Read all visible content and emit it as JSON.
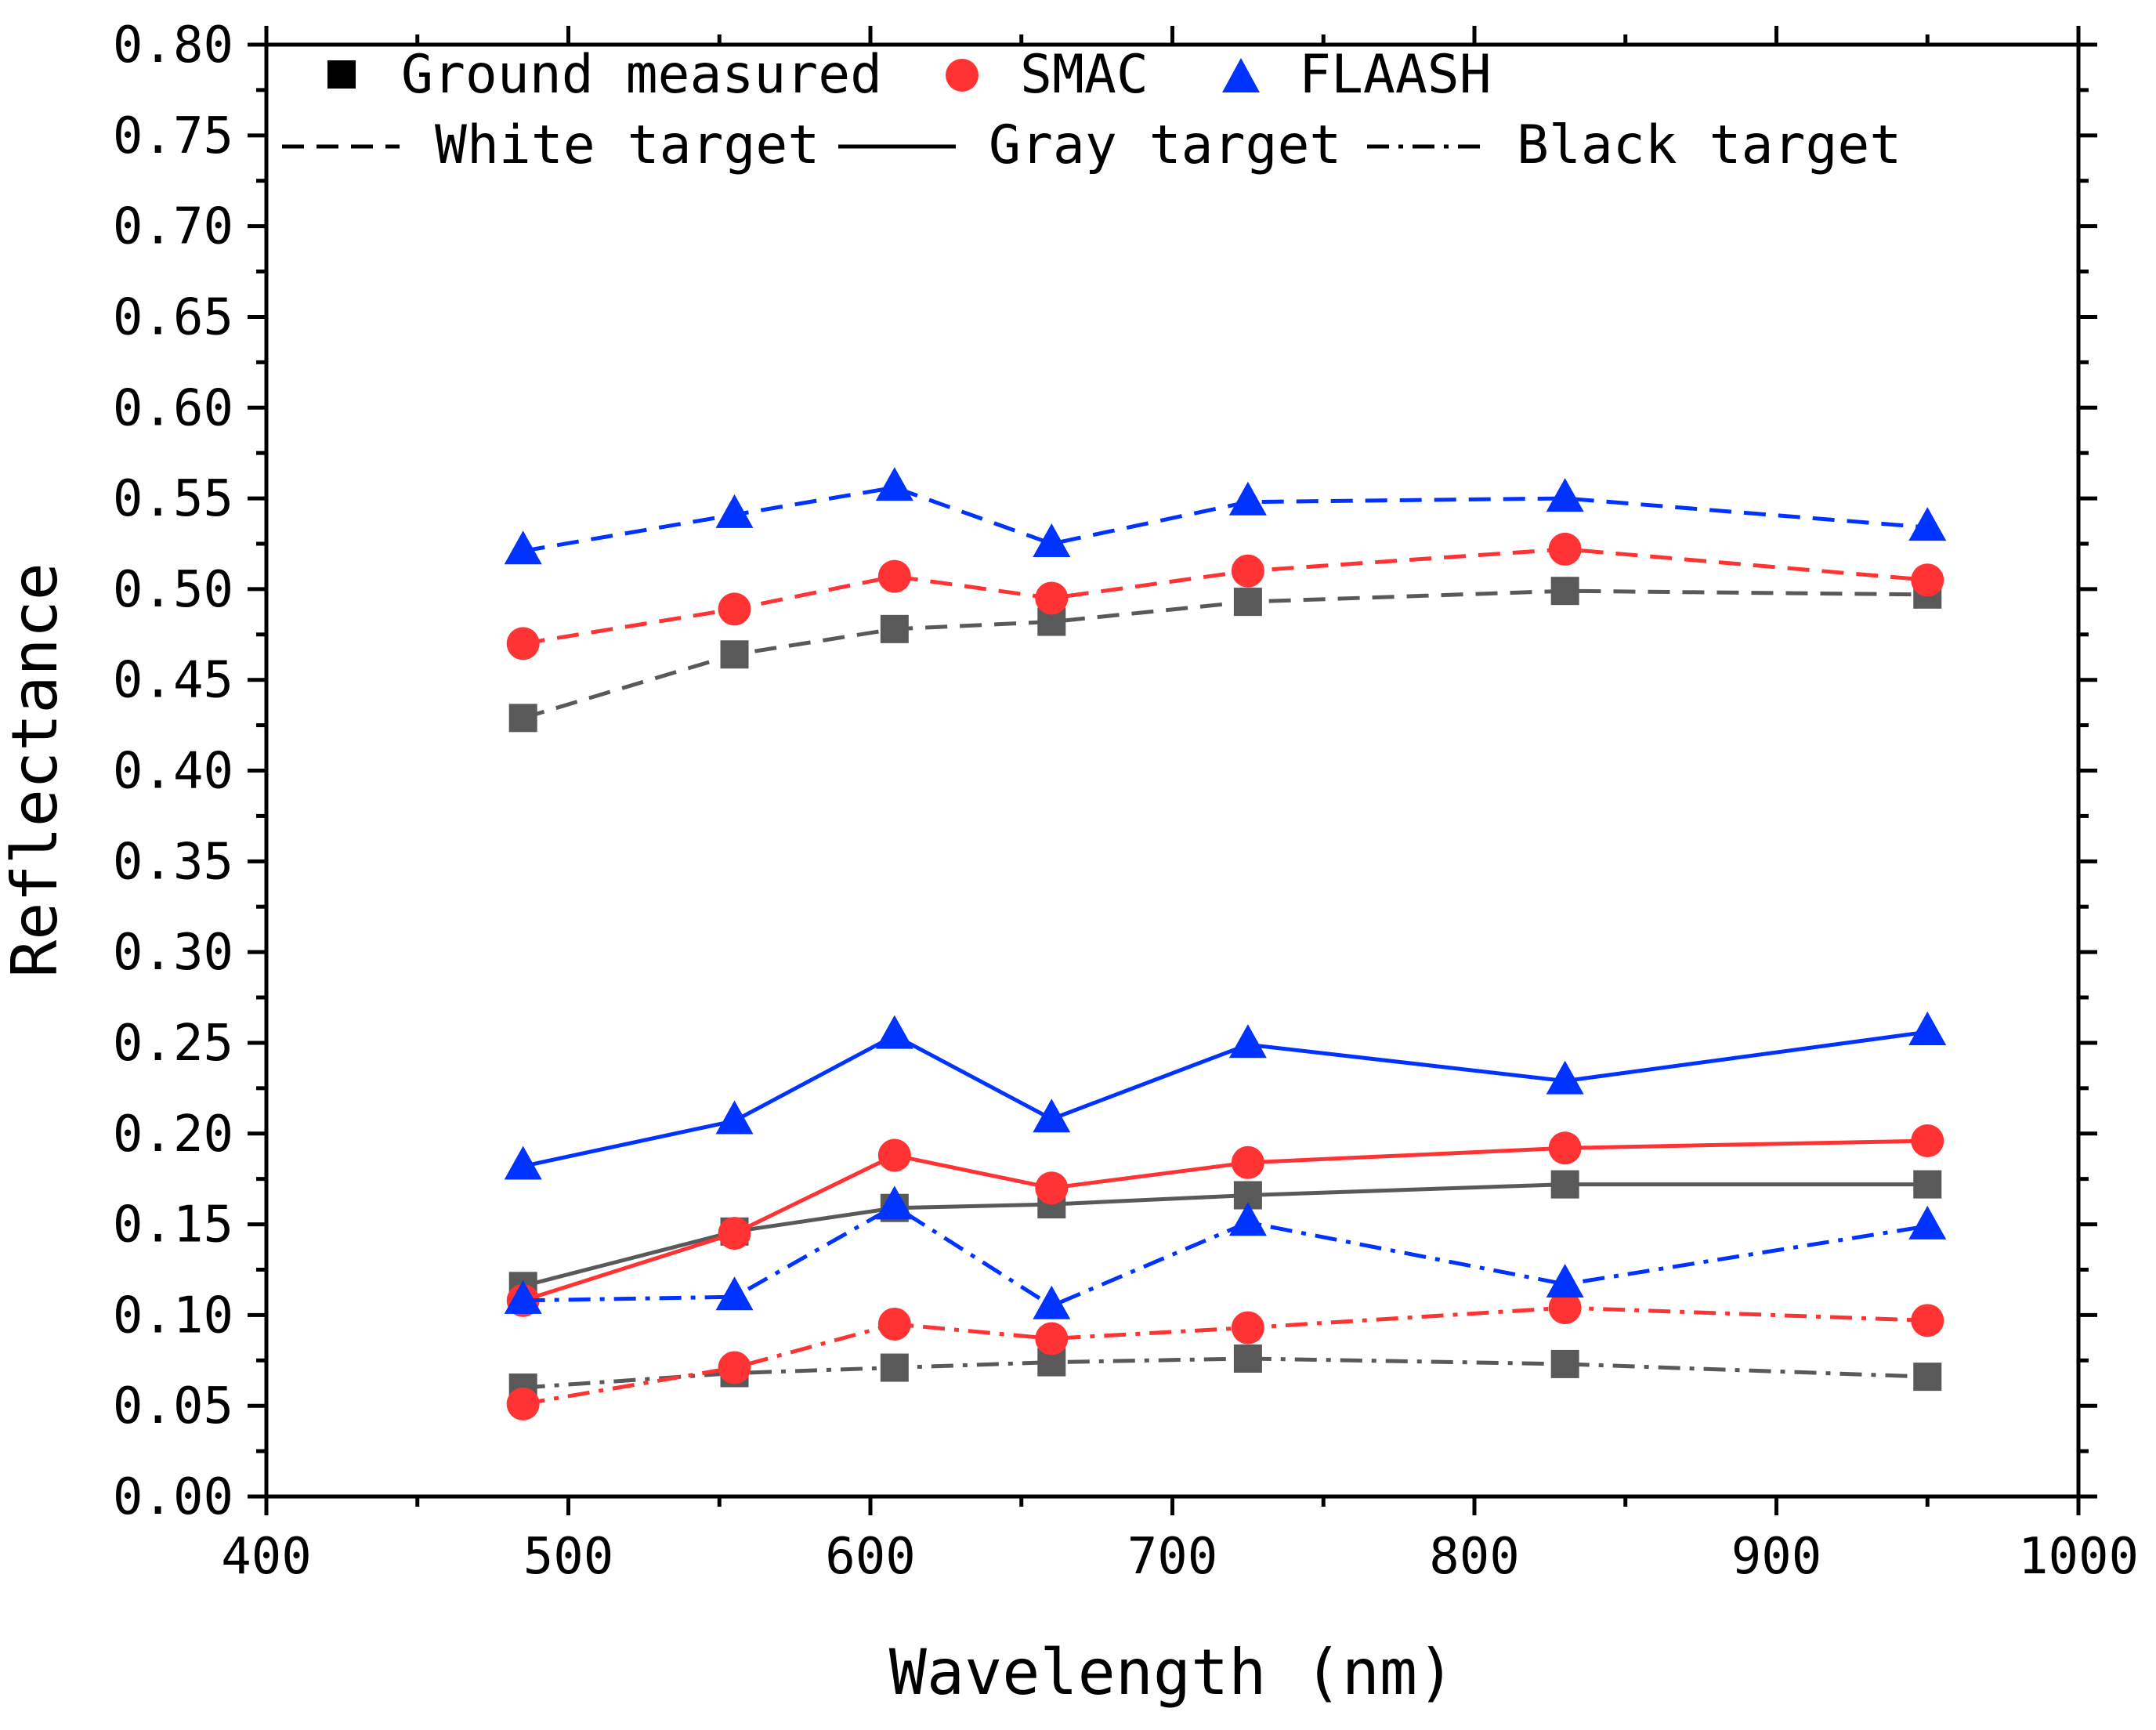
{
  "chart_data": {
    "type": "line",
    "title": "",
    "xlabel": "Wavelength (nm)",
    "ylabel": "Reflectance",
    "xlim": [
      400,
      1000
    ],
    "ylim": [
      0.0,
      0.8
    ],
    "x_ticks": [
      "400",
      "500",
      "600",
      "700",
      "800",
      "900",
      "1000"
    ],
    "y_ticks": [
      "0.00",
      "0.05",
      "0.10",
      "0.15",
      "0.20",
      "0.25",
      "0.30",
      "0.35",
      "0.40",
      "0.45",
      "0.50",
      "0.55",
      "0.60",
      "0.65",
      "0.70",
      "0.75",
      "0.80"
    ],
    "grid": false,
    "legend_position": "top-left",
    "x": [
      485,
      555,
      608,
      660,
      725,
      830,
      950
    ],
    "legend": {
      "sources": [
        {
          "label": "Ground measured",
          "marker": "square",
          "color": "#000000"
        },
        {
          "label": "SMAC",
          "marker": "circle",
          "color": "#ff3333"
        },
        {
          "label": "FLAASH",
          "marker": "triangle",
          "color": "#0033ff"
        }
      ],
      "targets": [
        {
          "label": "White target",
          "dash": "dashed"
        },
        {
          "label": "Gray target",
          "dash": "solid"
        },
        {
          "label": "Black target",
          "dash": "dashdot"
        }
      ]
    },
    "series": [
      {
        "name": "Ground measured - White target",
        "source": "Ground measured",
        "target": "White target",
        "color": "#595959",
        "marker": "square",
        "dash": "dashed",
        "values": [
          0.429,
          0.464,
          0.478,
          0.482,
          0.493,
          0.499,
          0.497
        ]
      },
      {
        "name": "SMAC - White target",
        "source": "SMAC",
        "target": "White target",
        "color": "#ff3333",
        "marker": "circle",
        "dash": "dashed",
        "values": [
          0.47,
          0.489,
          0.507,
          0.495,
          0.51,
          0.522,
          0.505
        ]
      },
      {
        "name": "FLAASH - White target",
        "source": "FLAASH",
        "target": "White target",
        "color": "#0033ff",
        "marker": "triangle",
        "dash": "dashed",
        "values": [
          0.521,
          0.541,
          0.556,
          0.525,
          0.548,
          0.55,
          0.534
        ]
      },
      {
        "name": "Ground measured - Gray target",
        "source": "Ground measured",
        "target": "Gray target",
        "color": "#595959",
        "marker": "square",
        "dash": "solid",
        "values": [
          0.116,
          0.146,
          0.159,
          0.161,
          0.166,
          0.172,
          0.172
        ]
      },
      {
        "name": "SMAC - Gray target",
        "source": "SMAC",
        "target": "Gray target",
        "color": "#ff3333",
        "marker": "circle",
        "dash": "solid",
        "values": [
          0.108,
          0.145,
          0.188,
          0.17,
          0.184,
          0.192,
          0.196
        ]
      },
      {
        "name": "FLAASH - Gray target",
        "source": "FLAASH",
        "target": "Gray target",
        "color": "#0033ff",
        "marker": "triangle",
        "dash": "solid",
        "values": [
          0.182,
          0.207,
          0.254,
          0.208,
          0.249,
          0.229,
          0.256
        ]
      },
      {
        "name": "Ground measured - Black target",
        "source": "Ground measured",
        "target": "Black target",
        "color": "#595959",
        "marker": "square",
        "dash": "dashdot",
        "values": [
          0.06,
          0.068,
          0.071,
          0.074,
          0.076,
          0.073,
          0.066
        ]
      },
      {
        "name": "SMAC - Black target",
        "source": "SMAC",
        "target": "Black target",
        "color": "#ff3333",
        "marker": "circle",
        "dash": "dashdot",
        "values": [
          0.051,
          0.071,
          0.095,
          0.087,
          0.093,
          0.104,
          0.097
        ]
      },
      {
        "name": "FLAASH - Black target",
        "source": "FLAASH",
        "target": "Black target",
        "color": "#0033ff",
        "marker": "triangle",
        "dash": "dashdot",
        "values": [
          0.108,
          0.11,
          0.16,
          0.105,
          0.151,
          0.117,
          0.149
        ]
      }
    ]
  }
}
